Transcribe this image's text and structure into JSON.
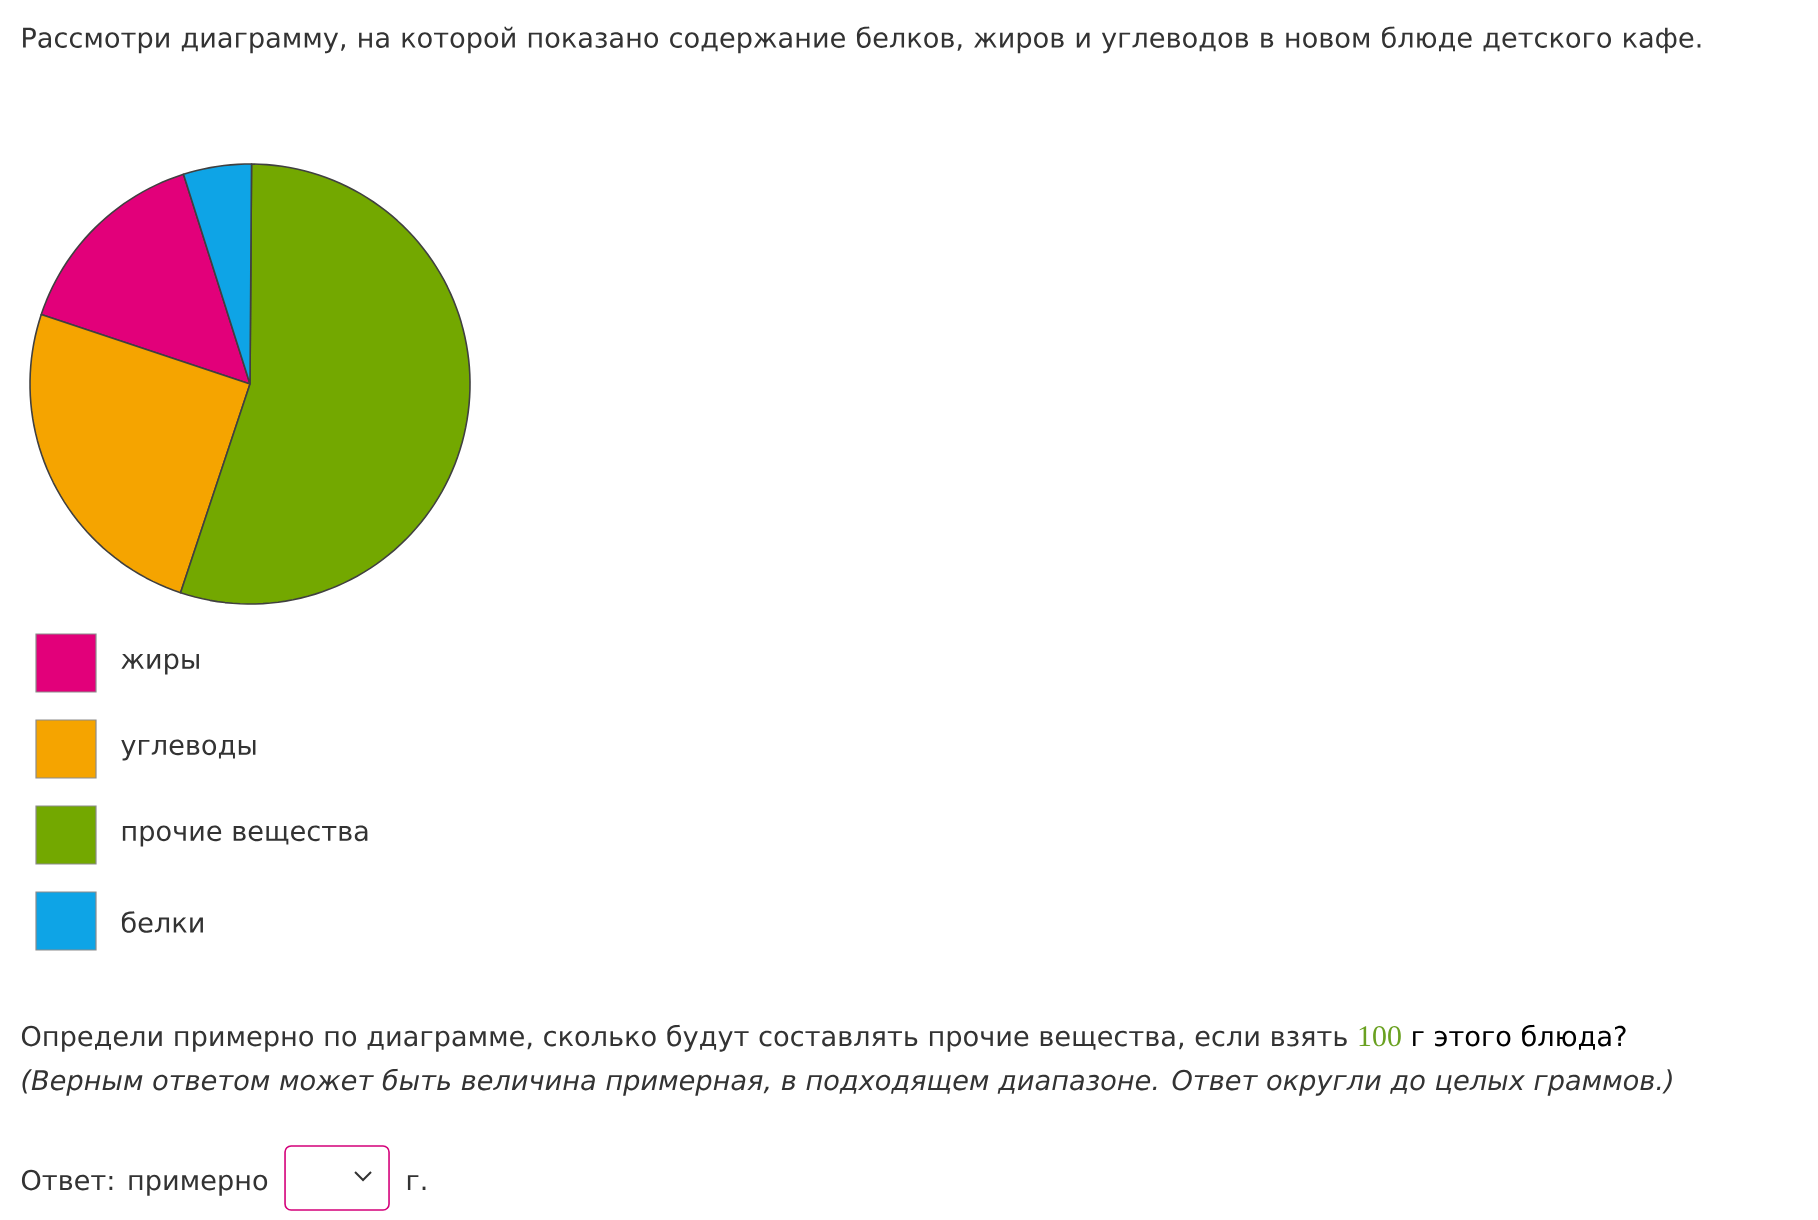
{
  "chart_data": {
    "type": "pie",
    "title": "Рассмотри диаграмму, на которой показано содержание белков, жиров и углеводов в новом блюде детского кафе.",
    "categories": [
      "жиры",
      "углеводы",
      "прочие вещества",
      "белки"
    ],
    "values": [
      15,
      25,
      55,
      5
    ],
    "colors": [
      "#e2007a",
      "#f5a400",
      "#73a800",
      "#0ea4e6"
    ],
    "legend": "bottom",
    "annotations": [
      "Определи примерно по диаграмме, сколько будут составлять прочие вещества, если взять",
      "100",
      "г этого блюда?",
      "(Верным ответом может быть величина примерная, в подходящем диапазоне. Ответ округли до целых граммов.)",
      "Ответ: примерно",
      "г."
    ]
  }
}
